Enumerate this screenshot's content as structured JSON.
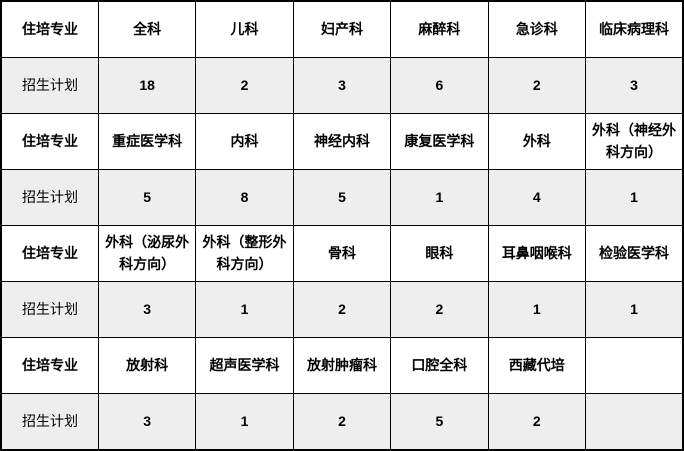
{
  "table": {
    "row_header_specialty": "住培专业",
    "row_header_plan": "招生计划",
    "columns_per_group": 6,
    "groups": [
      {
        "specialties": [
          "全科",
          "儿科",
          "妇产科",
          "麻醉科",
          "急诊科",
          "临床病理科"
        ],
        "plans": [
          "18",
          "2",
          "3",
          "6",
          "2",
          "3"
        ]
      },
      {
        "specialties": [
          "重症医学科",
          "内科",
          "神经内科",
          "康复医学科",
          "外科",
          "外科（神经外科方向）"
        ],
        "plans": [
          "5",
          "8",
          "5",
          "1",
          "4",
          "1"
        ]
      },
      {
        "specialties": [
          "外科（泌尿外科方向）",
          "外科（整形外科方向）",
          "骨科",
          "眼科",
          "耳鼻咽喉科",
          "检验医学科"
        ],
        "plans": [
          "3",
          "1",
          "2",
          "2",
          "1",
          "1"
        ]
      },
      {
        "specialties": [
          "放射科",
          "超声医学科",
          "放射肿瘤科",
          "口腔全科",
          "西藏代培",
          ""
        ],
        "plans": [
          "3",
          "1",
          "2",
          "5",
          "2",
          ""
        ]
      }
    ],
    "colors": {
      "border": "#000000",
      "text": "#000000",
      "specialty_row_bg": "#ffffff",
      "plan_row_bg": "#eeeeee"
    }
  }
}
